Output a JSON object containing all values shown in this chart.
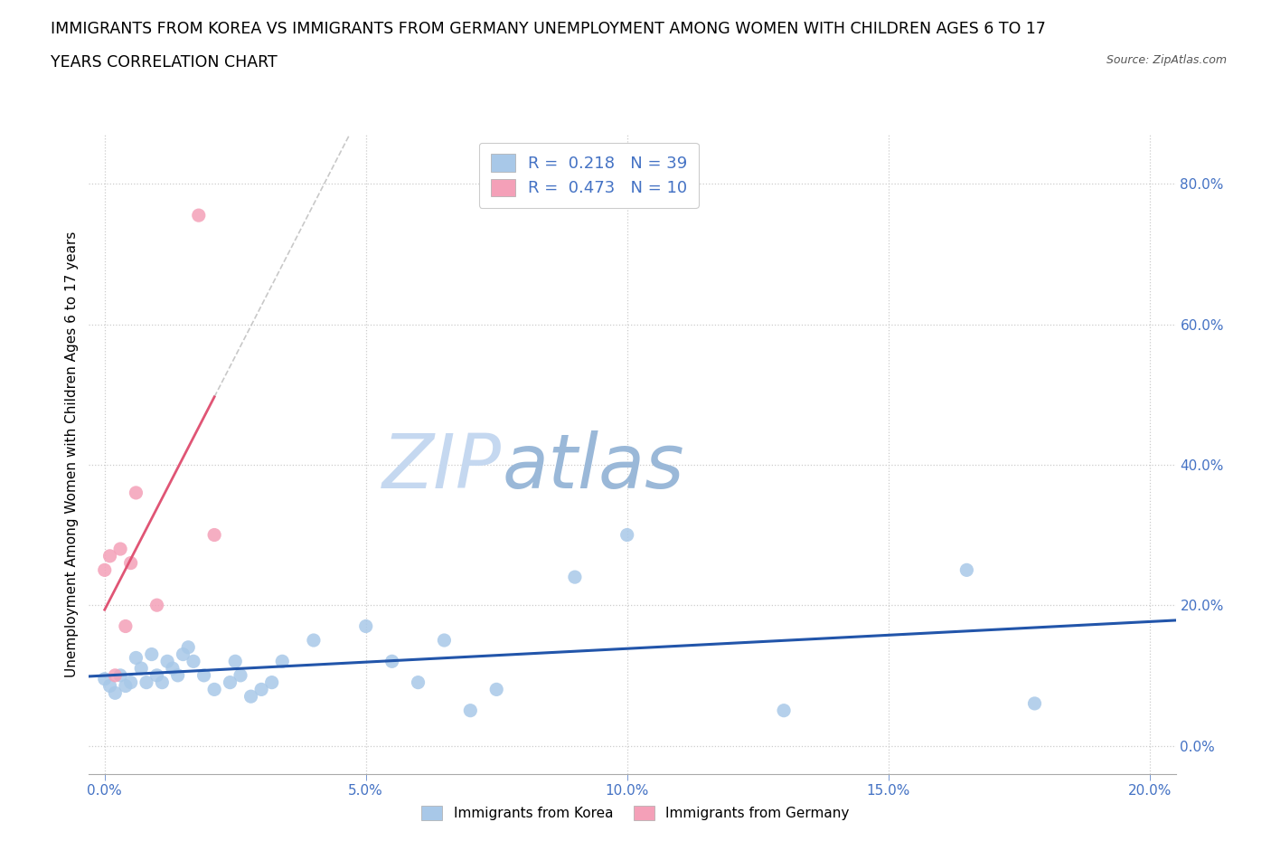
{
  "title_line1": "IMMIGRANTS FROM KOREA VS IMMIGRANTS FROM GERMANY UNEMPLOYMENT AMONG WOMEN WITH CHILDREN AGES 6 TO 17",
  "title_line2": "YEARS CORRELATION CHART",
  "source_text": "Source: ZipAtlas.com",
  "ylabel": "Unemployment Among Women with Children Ages 6 to 17 years",
  "watermark_zip": "ZIP",
  "watermark_atlas": "atlas",
  "xlim": [
    -0.003,
    0.205
  ],
  "ylim": [
    -0.04,
    0.87
  ],
  "xticks": [
    0.0,
    0.05,
    0.1,
    0.15,
    0.2
  ],
  "yticks": [
    0.0,
    0.2,
    0.4,
    0.6,
    0.8
  ],
  "korea_R": 0.218,
  "korea_N": 39,
  "germany_R": 0.473,
  "germany_N": 10,
  "korea_color": "#a8c8e8",
  "germany_color": "#f4a0b8",
  "korea_line_color": "#2255aa",
  "germany_line_color": "#e05575",
  "korea_x": [
    0.0,
    0.001,
    0.002,
    0.003,
    0.004,
    0.005,
    0.006,
    0.007,
    0.008,
    0.009,
    0.01,
    0.011,
    0.012,
    0.013,
    0.014,
    0.015,
    0.016,
    0.017,
    0.019,
    0.021,
    0.024,
    0.025,
    0.026,
    0.028,
    0.03,
    0.032,
    0.034,
    0.04,
    0.05,
    0.055,
    0.06,
    0.065,
    0.07,
    0.075,
    0.09,
    0.1,
    0.13,
    0.165,
    0.178
  ],
  "korea_y": [
    0.095,
    0.085,
    0.075,
    0.1,
    0.085,
    0.09,
    0.125,
    0.11,
    0.09,
    0.13,
    0.1,
    0.09,
    0.12,
    0.11,
    0.1,
    0.13,
    0.14,
    0.12,
    0.1,
    0.08,
    0.09,
    0.12,
    0.1,
    0.07,
    0.08,
    0.09,
    0.12,
    0.15,
    0.17,
    0.12,
    0.09,
    0.15,
    0.05,
    0.08,
    0.24,
    0.3,
    0.05,
    0.25,
    0.06
  ],
  "germany_x": [
    0.0,
    0.001,
    0.002,
    0.003,
    0.004,
    0.005,
    0.006,
    0.01,
    0.018,
    0.021
  ],
  "germany_y": [
    0.25,
    0.27,
    0.1,
    0.28,
    0.17,
    0.26,
    0.36,
    0.2,
    0.755,
    0.3
  ],
  "legend_korea_label": "Immigrants from Korea",
  "legend_germany_label": "Immigrants from Germany",
  "title_fontsize": 12.5,
  "axis_label_fontsize": 11,
  "tick_fontsize": 11,
  "legend_fontsize": 13,
  "watermark_fontsize_zip": 60,
  "watermark_fontsize_atlas": 60,
  "watermark_color_zip": "#c5d8f0",
  "watermark_color_atlas": "#9ab8d8",
  "background_color": "#ffffff",
  "grid_color": "#cccccc",
  "stat_color": "#4472c4",
  "scatter_size": 120
}
